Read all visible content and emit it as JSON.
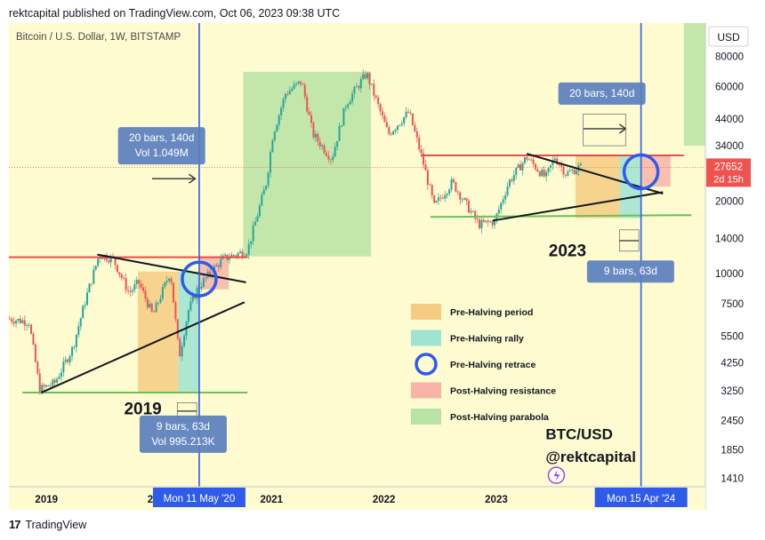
{
  "header": {
    "publish_line": "rektcapital published on TradingView.com, Oct 06, 2023 09:38 UTC"
  },
  "footer": {
    "brand": "TradingView",
    "logo_mark": "17"
  },
  "chart_data": {
    "type": "candlestick",
    "title": "Bitcoin / U.S. Dollar, 1W, BITSTAMP",
    "currency": "USD",
    "y_scale": "log",
    "ylim": [
      1300,
      110000
    ],
    "xlim": [
      "2018-09-01",
      "2024-11-10"
    ],
    "x_ticks": [
      "2019",
      "2020",
      "2021",
      "2022",
      "2023"
    ],
    "y_ticks": [
      80000,
      60000,
      44000,
      34000,
      20000,
      14000,
      10000,
      7500,
      5500,
      4250,
      3250,
      2450,
      1850,
      1410
    ],
    "last_price": {
      "value": "27652",
      "countdown": "2d 15h",
      "y": 27652
    },
    "price_path": [
      [
        "2018-09-01",
        6500
      ],
      [
        "2018-11-10",
        6300
      ],
      [
        "2018-12-15",
        3300
      ],
      [
        "2019-02-01",
        3500
      ],
      [
        "2019-04-01",
        4900
      ],
      [
        "2019-05-15",
        8000
      ],
      [
        "2019-06-26",
        12000
      ],
      [
        "2019-08-10",
        11500
      ],
      [
        "2019-10-01",
        8300
      ],
      [
        "2019-11-01",
        9200
      ],
      [
        "2019-12-17",
        6700
      ],
      [
        "2020-02-12",
        10200
      ],
      [
        "2020-03-12",
        4500
      ],
      [
        "2020-04-10",
        7000
      ],
      [
        "2020-05-11",
        8700
      ],
      [
        "2020-06-10",
        9700
      ],
      [
        "2020-08-01",
        11500
      ],
      [
        "2020-10-20",
        12500
      ],
      [
        "2020-12-20",
        24000
      ],
      [
        "2021-01-10",
        38000
      ],
      [
        "2021-02-20",
        56000
      ],
      [
        "2021-04-13",
        63000
      ],
      [
        "2021-05-20",
        38000
      ],
      [
        "2021-07-20",
        30000
      ],
      [
        "2021-09-05",
        51000
      ],
      [
        "2021-11-10",
        68000
      ],
      [
        "2022-01-20",
        38000
      ],
      [
        "2022-03-28",
        47000
      ],
      [
        "2022-05-10",
        30000
      ],
      [
        "2022-06-18",
        19000
      ],
      [
        "2022-08-15",
        24000
      ],
      [
        "2022-11-10",
        16000
      ],
      [
        "2022-12-31",
        16500
      ],
      [
        "2023-02-15",
        24000
      ],
      [
        "2023-04-14",
        30500
      ],
      [
        "2023-06-15",
        25000
      ],
      [
        "2023-07-15",
        30500
      ],
      [
        "2023-08-20",
        26000
      ],
      [
        "2023-10-01",
        27652
      ]
    ],
    "zones": [
      {
        "name": "Pre-Halving period",
        "color": "#f6cc82",
        "x": [
          "2019-10-25",
          "2020-03-05"
        ],
        "y": [
          3200,
          10200
        ]
      },
      {
        "name": "Pre-Halving rally",
        "color": "#9fe3d2",
        "x": [
          "2020-03-05",
          "2020-05-11"
        ],
        "y": [
          3200,
          10200
        ]
      },
      {
        "name": "Post-Halving resistance",
        "color": "#f8b4a8",
        "x": [
          "2020-05-11",
          "2020-08-15"
        ],
        "y": [
          8600,
          11700
        ]
      },
      {
        "name": "Post-Halving parabola",
        "color": "#b8e3a4",
        "x": [
          "2020-10-01",
          "2021-11-20"
        ],
        "y": [
          11800,
          69000
        ]
      },
      {
        "name": "Pre-Halving period",
        "color": "#f6cc82",
        "x": [
          "2023-09-15",
          "2024-02-05"
        ],
        "y": [
          17000,
          31000
        ]
      },
      {
        "name": "Pre-Halving rally",
        "color": "#9fe3d2",
        "x": [
          "2024-02-05",
          "2024-04-15"
        ],
        "y": [
          17000,
          31000
        ]
      },
      {
        "name": "Post-Halving resistance",
        "color": "#f8b4a8",
        "x": [
          "2024-04-15",
          "2024-07-20"
        ],
        "y": [
          23000,
          31000
        ]
      },
      {
        "name": "Post-Halving parabola",
        "color": "#b8e3a4",
        "x": [
          "2024-09-01",
          "2024-11-10"
        ],
        "y": [
          34000,
          110000
        ]
      }
    ],
    "lines": [
      {
        "kind": "resistance",
        "color": "#e84b4b",
        "from": [
          "2018-09-01",
          11700
        ],
        "to": [
          "2020-10-15",
          11700
        ]
      },
      {
        "kind": "resistance",
        "color": "#e84b4b",
        "from": [
          "2022-05-01",
          31000
        ],
        "to": [
          "2024-09-01",
          31000
        ]
      },
      {
        "kind": "support",
        "color": "#6cbf5c",
        "from": [
          "2018-10-15",
          3200
        ],
        "to": [
          "2020-10-15",
          3200
        ]
      },
      {
        "kind": "support",
        "color": "#6cbf5c",
        "from": [
          "2022-06-01",
          17200
        ],
        "to": [
          "2024-09-25",
          17500
        ]
      },
      {
        "kind": "trend",
        "color": "#131722",
        "from": [
          "2019-06-15",
          12000
        ],
        "to": [
          "2020-10-10",
          9200
        ]
      },
      {
        "kind": "trend",
        "color": "#131722",
        "from": [
          "2018-12-15",
          3200
        ],
        "to": [
          "2020-10-05",
          7600
        ]
      },
      {
        "kind": "trend",
        "color": "#131722",
        "from": [
          "2023-04-10",
          31500
        ],
        "to": [
          "2024-06-25",
          21500
        ]
      },
      {
        "kind": "trend",
        "color": "#131722",
        "from": [
          "2022-12-20",
          16600
        ],
        "to": [
          "2024-06-25",
          21800
        ]
      }
    ],
    "halving_lines": [
      {
        "date": "2020-05-11",
        "label": "Mon 11 May '20"
      },
      {
        "date": "2024-04-15",
        "label": "Mon 15 Apr '24"
      }
    ],
    "retrace_circles": [
      {
        "date": "2020-05-11",
        "y": 9500
      },
      {
        "date": "2024-04-15",
        "y": 26500
      }
    ],
    "measure_labels": [
      {
        "lines": [
          "20 bars, 140d",
          "Vol 1.049M"
        ],
        "date": "2020-01-10",
        "y": 34000
      },
      {
        "lines": [
          "9 bars, 63d",
          "Vol 995.213K"
        ],
        "date": "2020-03-20",
        "y": 2150
      },
      {
        "lines": [
          "20 bars, 140d"
        ],
        "date": "2023-12-10",
        "y": 56000
      },
      {
        "lines": [
          "9 bars, 63d"
        ],
        "date": "2024-03-12",
        "y": 10200
      }
    ],
    "annotations": [
      {
        "text": "2019",
        "date": "2019-09-10",
        "y": 2600
      },
      {
        "text": "2023",
        "date": "2023-06-20",
        "y": 11800
      },
      {
        "text": "BTC/USD",
        "date": "2023-06-10",
        "y": 2050
      },
      {
        "text": "@rektcapital",
        "date": "2023-06-10",
        "y": 1650
      }
    ],
    "legend": {
      "placement": "center",
      "items": [
        {
          "label": "Pre-Halving period",
          "color": "#f6cc82",
          "shape": "rect"
        },
        {
          "label": "Pre-Halving rally",
          "color": "#9fe3d2",
          "shape": "rect"
        },
        {
          "label": "Pre-Halving retrace",
          "color": "#2f5bea",
          "shape": "circle"
        },
        {
          "label": "Post-Halving resistance",
          "color": "#f8b4a8",
          "shape": "rect"
        },
        {
          "label": "Post-Halving parabola",
          "color": "#b8e3a4",
          "shape": "rect"
        }
      ]
    }
  }
}
